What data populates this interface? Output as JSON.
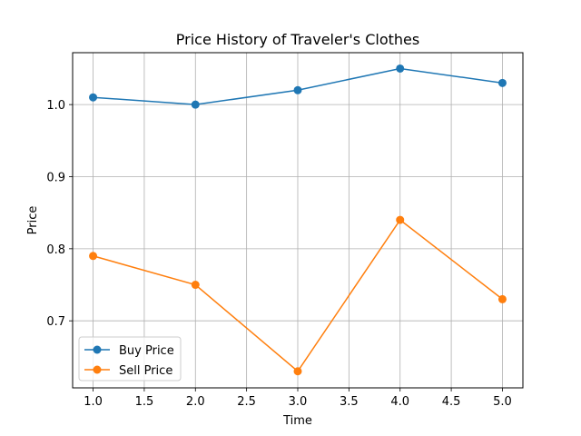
{
  "chart_data": {
    "type": "line",
    "title": "Price History of Traveler's Clothes",
    "xlabel": "Time",
    "ylabel": "Price",
    "xlim": [
      0.8,
      5.2
    ],
    "ylim": [
      0.607,
      1.072
    ],
    "xticks": [
      1.0,
      1.5,
      2.0,
      2.5,
      3.0,
      3.5,
      4.0,
      4.5,
      5.0
    ],
    "xtick_labels": [
      "1.0",
      "1.5",
      "2.0",
      "2.5",
      "3.0",
      "3.5",
      "4.0",
      "4.5",
      "5.0"
    ],
    "yticks": [
      0.7,
      0.8,
      0.9,
      1.0
    ],
    "ytick_labels": [
      "0.7",
      "0.8",
      "0.9",
      "1.0"
    ],
    "grid": true,
    "legend_position": "lower-left",
    "x": [
      1,
      2,
      3,
      4,
      5
    ],
    "series": [
      {
        "name": "Buy Price",
        "color": "#1f77b4",
        "marker": "circle",
        "values": [
          1.01,
          1.0,
          1.02,
          1.05,
          1.03
        ]
      },
      {
        "name": "Sell Price",
        "color": "#ff7f0e",
        "marker": "circle",
        "values": [
          0.79,
          0.75,
          0.63,
          0.84,
          0.73
        ]
      }
    ]
  }
}
